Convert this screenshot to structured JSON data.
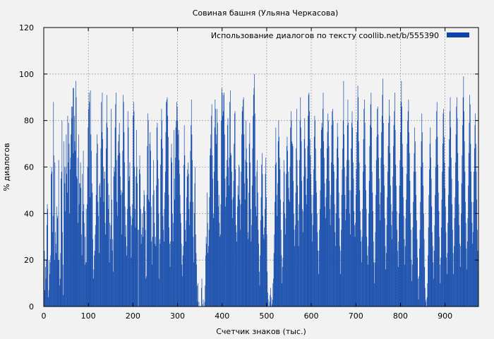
{
  "chart_data": {
    "type": "bar",
    "title": "Совиная башня (Ульяна Черкасова)",
    "xlabel": "Счетчик знаков (тыс.)",
    "ylabel": "% диалогов",
    "xlim": [
      0,
      975
    ],
    "ylim": [
      0,
      120
    ],
    "xticks": [
      0,
      100,
      200,
      300,
      400,
      500,
      600,
      700,
      800,
      900
    ],
    "yticks": [
      0,
      20,
      40,
      60,
      80,
      100,
      120
    ],
    "grid": true,
    "legend_position": "top-right",
    "bar_width": 1,
    "series": [
      {
        "name": "Использование диалогов по тексту  coollib.net/b/555390",
        "color": "#0b44a8",
        "x_start": 0,
        "x_step": 1,
        "values": [
          15,
          24,
          7,
          17,
          12,
          20,
          35,
          44,
          42,
          4,
          7,
          20,
          14,
          19,
          22,
          57,
          60,
          58,
          32,
          39,
          88,
          65,
          20,
          62,
          32,
          27,
          23,
          43,
          38,
          39,
          20,
          63,
          20,
          9,
          12,
          23,
          55,
          58,
          80,
          32,
          18,
          5,
          71,
          60,
          53,
          41,
          60,
          74,
          57,
          49,
          82,
          62,
          79,
          70,
          40,
          59,
          64,
          74,
          86,
          81,
          86,
          94,
          66,
          94,
          82,
          71,
          67,
          97,
          90,
          56,
          55,
          64,
          36,
          74,
          44,
          53,
          53,
          62,
          51,
          31,
          22,
          57,
          41,
          67,
          44,
          36,
          18,
          30,
          19,
          42,
          19,
          44,
          60,
          77,
          85,
          92,
          88,
          47,
          93,
          74,
          67,
          53,
          49,
          29,
          12,
          16,
          22,
          24,
          31,
          35,
          48,
          66,
          74,
          70,
          45,
          39,
          23,
          52,
          53,
          47,
          68,
          88,
          75,
          92,
          72,
          60,
          45,
          55,
          58,
          36,
          31,
          68,
          79,
          91,
          77,
          53,
          42,
          48,
          19,
          36,
          29,
          35,
          85,
          46,
          24,
          29,
          15,
          56,
          60,
          58,
          77,
          87,
          92,
          63,
          45,
          39,
          65,
          71,
          74,
          79,
          66,
          56,
          48,
          50,
          31,
          49,
          67,
          91,
          88,
          75,
          62,
          43,
          30,
          35,
          22,
          26,
          42,
          84,
          77,
          54,
          56,
          62,
          43,
          39,
          21,
          35,
          44,
          38,
          82,
          88,
          84,
          60,
          42,
          34,
          56,
          76,
          60,
          53,
          33,
          0,
          33,
          59,
          65,
          57,
          42,
          27,
          31,
          40,
          34,
          30,
          43,
          50,
          48,
          41,
          33,
          12,
          13,
          48,
          69,
          83,
          80,
          46,
          45,
          70,
          75,
          67,
          43,
          28,
          18,
          30,
          48,
          63,
          50,
          36,
          27,
          30,
          26,
          52,
          77,
          79,
          63,
          55,
          40,
          12,
          29,
          27,
          61,
          72,
          85,
          80,
          68,
          39,
          33,
          28,
          42,
          49,
          58,
          75,
          88,
          89,
          90,
          82,
          73,
          48,
          34,
          27,
          17,
          28,
          64,
          70,
          62,
          40,
          28,
          36,
          76,
          55,
          46,
          64,
          77,
          80,
          88,
          86,
          80,
          74,
          76,
          63,
          57,
          48,
          40,
          36,
          27,
          18,
          13,
          22,
          26,
          61,
          78,
          65,
          33,
          28,
          37,
          47,
          56,
          59,
          62,
          57,
          42,
          35,
          45,
          67,
          78,
          89,
          74,
          63,
          45,
          30,
          19,
          40,
          53,
          60,
          31,
          23,
          18,
          9,
          2,
          10,
          0,
          2,
          0,
          0,
          0,
          0,
          8,
          12,
          0,
          1,
          3,
          0,
          0,
          2,
          9,
          22,
          30,
          27,
          49,
          36,
          23,
          26,
          33,
          47,
          65,
          68,
          74,
          82,
          87,
          65,
          55,
          40,
          38,
          58,
          77,
          89,
          85,
          70,
          74,
          85,
          79,
          54,
          43,
          48,
          36,
          30,
          31,
          44,
          80,
          94,
          92,
          82,
          84,
          91,
          92,
          74,
          55,
          43,
          47,
          56,
          63,
          78,
          81,
          60,
          52,
          64,
          88,
          93,
          66,
          65,
          58,
          46,
          38,
          47,
          54,
          70,
          83,
          84,
          59,
          35,
          32,
          28,
          43,
          52,
          48,
          61,
          60,
          46,
          33,
          44,
          58,
          74,
          84,
          86,
          89,
          90,
          74,
          53,
          46,
          63,
          80,
          68,
          62,
          55,
          32,
          29,
          49,
          70,
          79,
          62,
          42,
          28,
          35,
          52,
          68,
          82,
          91,
          94,
          100,
          83,
          56,
          43,
          39,
          58,
          63,
          49,
          33,
          27,
          15,
          9,
          22,
          37,
          47,
          61,
          66,
          57,
          39,
          31,
          29,
          34,
          42,
          57,
          64,
          47,
          31,
          15,
          6,
          3,
          0,
          0,
          2,
          5,
          8,
          4,
          0,
          1,
          3,
          10,
          12,
          23,
          31,
          45,
          61,
          77,
          62,
          48,
          39,
          53,
          71,
          80,
          73,
          64,
          59,
          46,
          33,
          22,
          10,
          17,
          21,
          45,
          63,
          58,
          40,
          31,
          38,
          57,
          69,
          73,
          67,
          58,
          51,
          46,
          45,
          60,
          77,
          84,
          80,
          71,
          70,
          69,
          54,
          40,
          33,
          26,
          35,
          49,
          68,
          85,
          63,
          52,
          37,
          26,
          44,
          63,
          80,
          90,
          77,
          71,
          54,
          42,
          32,
          41,
          56,
          72,
          81,
          68,
          60,
          48,
          44,
          55,
          69,
          82,
          91,
          92,
          84,
          72,
          65,
          57,
          48,
          40,
          28,
          35,
          48,
          59,
          73,
          82,
          80,
          68,
          54,
          49,
          40,
          32,
          24,
          14,
          24,
          33,
          42,
          50,
          68,
          76,
          79,
          77,
          85,
          92,
          71,
          64,
          53,
          43,
          38,
          47,
          55,
          68,
          75,
          83,
          80,
          69,
          54,
          42,
          35,
          48,
          62,
          78,
          84,
          85,
          80,
          61,
          58,
          44,
          32,
          26,
          40,
          55,
          68,
          79,
          73,
          64,
          49,
          38,
          26,
          14,
          24,
          33,
          48,
          59,
          68,
          80,
          97,
          74,
          60,
          48,
          37,
          42,
          56,
          63,
          78,
          89,
          79,
          63,
          50,
          40,
          31,
          50,
          68,
          79,
          84,
          77,
          62,
          55,
          41,
          35,
          30,
          36,
          48,
          59,
          75,
          80,
          95,
          90,
          71,
          62,
          50,
          41,
          33,
          28,
          19,
          30,
          42,
          58,
          72,
          85,
          89,
          79,
          61,
          50,
          42,
          30,
          22,
          18,
          26,
          40,
          54,
          69,
          78,
          87,
          92,
          77,
          58,
          49,
          41,
          28,
          19,
          10,
          19,
          32,
          48,
          63,
          73,
          85,
          86,
          74,
          64,
          55,
          44,
          37,
          49,
          64,
          75,
          82,
          91,
          98,
          79,
          61,
          52,
          38,
          26,
          16,
          23,
          35,
          47,
          58,
          69,
          79,
          89,
          82,
          66,
          52,
          44,
          35,
          29,
          41,
          56,
          69,
          78,
          84,
          92,
          76,
          61,
          52,
          41,
          33,
          24,
          17,
          28,
          40,
          52,
          63,
          75,
          88,
          97,
          86,
          70,
          60,
          47,
          39,
          29,
          18,
          26,
          38,
          46,
          57,
          70,
          80,
          84,
          89,
          75,
          66,
          54,
          40,
          33,
          20,
          11,
          18,
          34,
          45,
          58,
          66,
          77,
          71,
          58,
          48,
          37,
          29,
          21,
          12,
          3,
          13,
          25,
          33,
          45,
          60,
          71,
          83,
          75,
          62,
          52,
          40,
          29,
          17,
          8,
          2,
          3,
          0,
          4,
          10,
          22,
          34,
          48,
          59,
          70,
          77,
          64,
          55,
          43,
          32,
          26,
          19,
          12,
          24,
          35,
          48,
          60,
          72,
          84,
          88,
          73,
          61,
          49,
          41,
          30,
          18,
          10,
          21,
          34,
          46,
          58,
          70,
          83,
          85,
          73,
          62,
          51,
          43,
          32,
          21,
          14,
          23,
          36,
          48,
          60,
          72,
          84,
          90,
          77,
          64,
          55,
          44,
          33,
          23,
          14,
          26,
          38,
          47,
          62,
          74,
          86,
          90,
          81,
          66,
          54,
          44,
          35,
          27,
          17,
          26,
          40,
          53,
          65,
          78,
          90,
          99,
          84,
          71,
          58,
          45,
          36,
          25,
          16,
          28,
          38,
          52,
          66,
          79,
          91,
          87,
          70,
          58,
          45,
          36,
          27,
          32,
          45,
          58,
          68,
          78,
          83,
          70,
          58,
          46,
          33,
          24,
          15
        ]
      }
    ]
  }
}
